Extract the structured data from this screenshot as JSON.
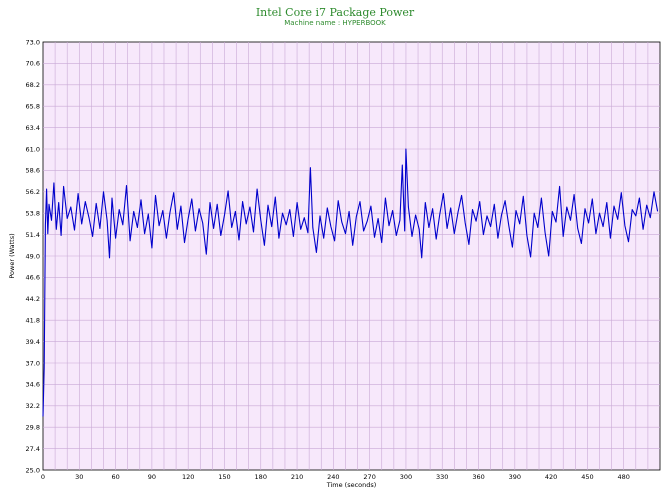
{
  "chart_data": {
    "type": "line",
    "title": "Intel Core i7 Package Power",
    "subtitle": "Machine name : HYPERBOOK",
    "xlabel": "Time (seconds)",
    "ylabel": "Power (Watts)",
    "xlim": [
      0,
      510
    ],
    "ylim": [
      25.0,
      73.0
    ],
    "x_ticks": [
      0,
      30,
      60,
      90,
      120,
      150,
      180,
      210,
      240,
      270,
      300,
      330,
      360,
      390,
      420,
      450,
      480
    ],
    "y_ticks": [
      "25.0",
      "27.4",
      "29.8",
      "32.2",
      "34.6",
      "37.0",
      "39.4",
      "41.8",
      "44.2",
      "46.6",
      "49.0",
      "51.4",
      "53.8",
      "56.2",
      "58.6",
      "61.0",
      "63.4",
      "65.8",
      "68.2",
      "70.6",
      "73.0"
    ],
    "grid": true,
    "series": [
      {
        "color": "#0000cc",
        "x": [
          0,
          1,
          2,
          3,
          4,
          5,
          7,
          9,
          11,
          13,
          15,
          17,
          20,
          23,
          26,
          29,
          32,
          35,
          38,
          41,
          44,
          47,
          50,
          53,
          55,
          57,
          60,
          63,
          66,
          69,
          72,
          75,
          78,
          81,
          84,
          87,
          90,
          93,
          96,
          99,
          102,
          105,
          108,
          111,
          114,
          117,
          120,
          123,
          126,
          129,
          132,
          135,
          138,
          141,
          144,
          147,
          150,
          153,
          156,
          159,
          162,
          165,
          168,
          171,
          174,
          177,
          180,
          183,
          186,
          189,
          192,
          195,
          198,
          201,
          204,
          207,
          210,
          213,
          216,
          219,
          221,
          223,
          226,
          229,
          232,
          235,
          238,
          241,
          244,
          247,
          250,
          253,
          256,
          259,
          262,
          265,
          268,
          271,
          274,
          277,
          280,
          283,
          286,
          289,
          292,
          295,
          297,
          299,
          300,
          302,
          305,
          308,
          311,
          313,
          316,
          319,
          322,
          325,
          328,
          331,
          334,
          337,
          340,
          343,
          346,
          349,
          352,
          355,
          358,
          361,
          364,
          367,
          370,
          373,
          376,
          379,
          382,
          385,
          388,
          391,
          394,
          397,
          400,
          403,
          406,
          409,
          412,
          415,
          418,
          421,
          424,
          427,
          430,
          433,
          436,
          439,
          442,
          445,
          448,
          451,
          454,
          457,
          460,
          463,
          466,
          469,
          472,
          475,
          478,
          481,
          484,
          487,
          490,
          493,
          496,
          499,
          502,
          505,
          508
        ],
        "y": [
          31.0,
          36.5,
          52.5,
          56.5,
          51.5,
          54.8,
          53.0,
          57.2,
          52.0,
          55.0,
          51.3,
          56.8,
          53.2,
          54.5,
          51.9,
          56.0,
          52.6,
          55.1,
          53.3,
          51.2,
          54.9,
          52.1,
          56.2,
          53.0,
          48.8,
          55.5,
          51.0,
          54.2,
          52.5,
          56.9,
          50.7,
          54.0,
          52.2,
          55.3,
          51.5,
          53.7,
          49.9,
          55.8,
          52.4,
          54.1,
          51.0,
          53.9,
          56.1,
          52.0,
          54.6,
          50.5,
          53.2,
          55.4,
          51.8,
          54.3,
          52.7,
          49.2,
          55.0,
          52.1,
          54.8,
          51.3,
          53.6,
          56.3,
          52.2,
          54.0,
          50.8,
          55.1,
          52.6,
          54.5,
          51.7,
          56.5,
          53.0,
          50.2,
          54.7,
          52.3,
          55.6,
          51.0,
          53.8,
          52.5,
          54.2,
          51.2,
          55.0,
          52.0,
          53.3,
          51.6,
          58.9,
          52.2,
          49.4,
          53.5,
          51.0,
          54.4,
          52.3,
          50.7,
          55.2,
          52.8,
          51.5,
          54.0,
          50.2,
          53.4,
          55.1,
          51.8,
          52.9,
          54.6,
          51.1,
          53.2,
          50.5,
          55.5,
          52.4,
          54.1,
          51.3,
          53.0,
          59.2,
          51.8,
          61.0,
          54.5,
          51.2,
          53.6,
          52.0,
          48.8,
          55.0,
          52.2,
          54.3,
          50.9,
          53.7,
          56.0,
          52.1,
          54.4,
          51.5,
          53.9,
          55.8,
          52.7,
          50.3,
          54.2,
          52.9,
          55.1,
          51.4,
          53.5,
          52.3,
          54.8,
          51.0,
          53.6,
          55.2,
          52.4,
          50.0,
          54.1,
          52.6,
          55.7,
          51.3,
          48.9,
          53.8,
          52.2,
          55.5,
          51.6,
          49.0,
          54.0,
          52.8,
          56.8,
          51.2,
          54.5,
          53.0,
          55.9,
          52.1,
          50.4,
          54.3,
          52.7,
          55.4,
          51.5,
          53.8,
          52.3,
          55.0,
          51.0,
          54.6,
          53.1,
          56.1,
          52.4,
          50.6,
          54.2,
          53.5,
          55.5,
          52.0,
          54.7,
          53.3,
          56.2,
          54.0
        ]
      }
    ]
  }
}
